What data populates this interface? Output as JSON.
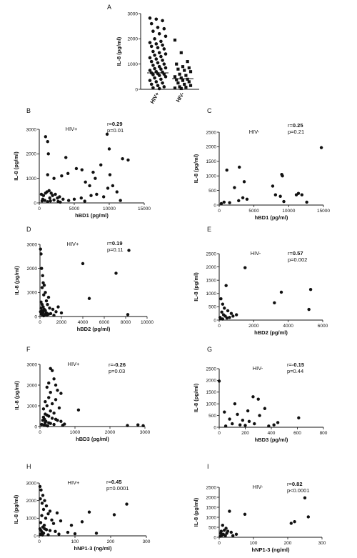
{
  "figure": {
    "panels": [
      {
        "label": "A"
      },
      {
        "label": "B"
      },
      {
        "label": "C"
      },
      {
        "label": "D"
      },
      {
        "label": "E"
      },
      {
        "label": "F"
      },
      {
        "label": "G"
      },
      {
        "label": "H"
      },
      {
        "label": "I"
      }
    ]
  },
  "chart_data": [
    {
      "panel": "A",
      "type": "scatter",
      "title": "",
      "xlabel": "",
      "ylabel": "IL-8 (pg/ml)",
      "categories": [
        "HIV+",
        "HIV-"
      ],
      "ylim": [
        0,
        3000
      ],
      "yticks": [
        0,
        1000,
        2000,
        3000
      ],
      "mean_bars": [
        650,
        420
      ],
      "series": [
        {
          "marker": "circle",
          "values": [
            2820,
            2780,
            2720,
            2600,
            2450,
            2400,
            2300,
            2200,
            2100,
            2000,
            1900,
            1850,
            1800,
            1750,
            1700,
            1650,
            1600,
            1500,
            1450,
            1400,
            1350,
            1300,
            1250,
            1200,
            1150,
            1100,
            1050,
            1000,
            950,
            900,
            850,
            820,
            800,
            750,
            700,
            680,
            650,
            620,
            600,
            580,
            550,
            500,
            450,
            400,
            350,
            300,
            250,
            200,
            150,
            100,
            60,
            30
          ]
        },
        {
          "marker": "square",
          "values": [
            1950,
            1450,
            1100,
            1000,
            900,
            850,
            800,
            750,
            700,
            600,
            550,
            500,
            450,
            400,
            380,
            350,
            300,
            250,
            200,
            150,
            100,
            80,
            50,
            30
          ]
        }
      ]
    },
    {
      "panel": "B",
      "type": "scatter",
      "title": "HIV+",
      "xlabel": "hBD1 (pg/ml)",
      "ylabel": "IL-8 (pg/ml)",
      "xlim": [
        0,
        15000
      ],
      "xticks": [
        0,
        5000,
        10000,
        15000
      ],
      "ylim": [
        0,
        3000
      ],
      "yticks": [
        0,
        1000,
        2000,
        3000
      ],
      "r_label": "r=",
      "r_value": "0.29",
      "p_text": "p=0.01",
      "points": [
        [
          900,
          2700
        ],
        [
          1200,
          2500
        ],
        [
          9700,
          2800
        ],
        [
          1300,
          2000
        ],
        [
          10000,
          2200
        ],
        [
          3800,
          1850
        ],
        [
          11900,
          1800
        ],
        [
          12700,
          1750
        ],
        [
          8800,
          1550
        ],
        [
          5300,
          1400
        ],
        [
          6100,
          1350
        ],
        [
          4100,
          1200
        ],
        [
          7700,
          1250
        ],
        [
          10100,
          1150
        ],
        [
          8000,
          1000
        ],
        [
          3200,
          1100
        ],
        [
          1200,
          1150
        ],
        [
          2100,
          1000
        ],
        [
          6600,
          850
        ],
        [
          7200,
          700
        ],
        [
          9800,
          600
        ],
        [
          10500,
          700
        ],
        [
          11100,
          450
        ],
        [
          11600,
          100
        ],
        [
          300,
          350
        ],
        [
          600,
          300
        ],
        [
          900,
          400
        ],
        [
          1100,
          450
        ],
        [
          1400,
          500
        ],
        [
          1700,
          400
        ],
        [
          1900,
          300
        ],
        [
          2300,
          350
        ],
        [
          2600,
          200
        ],
        [
          2900,
          250
        ],
        [
          3400,
          150
        ],
        [
          500,
          150
        ],
        [
          800,
          100
        ],
        [
          1200,
          50
        ],
        [
          1600,
          80
        ],
        [
          2100,
          120
        ],
        [
          2700,
          60
        ],
        [
          4200,
          100
        ],
        [
          5000,
          150
        ],
        [
          6000,
          200
        ],
        [
          7400,
          300
        ],
        [
          8200,
          350
        ],
        [
          9200,
          250
        ],
        [
          400,
          80
        ],
        [
          1500,
          200
        ],
        [
          3000,
          30
        ],
        [
          6500,
          70
        ]
      ]
    },
    {
      "panel": "C",
      "type": "scatter",
      "title": "HIV-",
      "xlabel": "hBD1 (pg/ml)",
      "ylabel": "IL-8 (pg/ml)",
      "xlim": [
        0,
        15000
      ],
      "xticks": [
        0,
        5000,
        10000,
        15000
      ],
      "ylim": [
        0,
        2500
      ],
      "yticks": [
        0,
        500,
        1000,
        1500,
        2000,
        2500
      ],
      "r_label": "r=",
      "r_value": "0.25",
      "p_text": "p=0.21",
      "points": [
        [
          14700,
          1970
        ],
        [
          1100,
          1200
        ],
        [
          2900,
          1300
        ],
        [
          9000,
          1050
        ],
        [
          9100,
          1000
        ],
        [
          3600,
          800
        ],
        [
          7700,
          650
        ],
        [
          2200,
          600
        ],
        [
          8100,
          350
        ],
        [
          8800,
          300
        ],
        [
          11100,
          350
        ],
        [
          11400,
          400
        ],
        [
          11900,
          350
        ],
        [
          12600,
          100
        ],
        [
          3400,
          250
        ],
        [
          4000,
          200
        ],
        [
          700,
          100
        ],
        [
          300,
          50
        ],
        [
          1500,
          80
        ],
        [
          9300,
          120
        ],
        [
          2800,
          150
        ]
      ]
    },
    {
      "panel": "D",
      "type": "scatter",
      "title": "HIV+",
      "xlabel": "hBD2 (pg/ml)",
      "ylabel": "IL-8 (pg/ml)",
      "xlim": [
        0,
        10000
      ],
      "xticks": [
        0,
        2000,
        4000,
        6000,
        8000,
        10000
      ],
      "ylim": [
        0,
        3000
      ],
      "yticks": [
        0,
        1000,
        2000,
        3000
      ],
      "r_label": "r=",
      "r_value": "0.19",
      "p_text": "p=0.11",
      "points": [
        [
          50,
          2800
        ],
        [
          100,
          2600
        ],
        [
          8300,
          2750
        ],
        [
          4000,
          2200
        ],
        [
          7100,
          1800
        ],
        [
          150,
          2000
        ],
        [
          250,
          1700
        ],
        [
          300,
          1400
        ],
        [
          400,
          1300
        ],
        [
          200,
          1200
        ],
        [
          500,
          1000
        ],
        [
          350,
          900
        ],
        [
          4600,
          750
        ],
        [
          800,
          800
        ],
        [
          600,
          650
        ],
        [
          700,
          500
        ],
        [
          900,
          350
        ],
        [
          1200,
          300
        ],
        [
          1500,
          200
        ],
        [
          1700,
          400
        ],
        [
          100,
          600
        ],
        [
          200,
          500
        ],
        [
          300,
          400
        ],
        [
          400,
          300
        ],
        [
          500,
          250
        ],
        [
          600,
          150
        ],
        [
          800,
          100
        ],
        [
          50,
          200
        ],
        [
          150,
          100
        ],
        [
          250,
          50
        ],
        [
          350,
          30
        ],
        [
          450,
          80
        ],
        [
          650,
          60
        ],
        [
          1000,
          120
        ],
        [
          8200,
          80
        ],
        [
          2000,
          150
        ],
        [
          1300,
          50
        ],
        [
          100,
          350
        ],
        [
          200,
          250
        ],
        [
          300,
          180
        ]
      ]
    },
    {
      "panel": "E",
      "type": "scatter",
      "title": "HIV-",
      "xlabel": "hBD2 (pg/ml)",
      "ylabel": "IL-8 (pg/ml)",
      "xlim": [
        0,
        6000
      ],
      "xticks": [
        0,
        2000,
        4000,
        6000
      ],
      "ylim": [
        0,
        2500
      ],
      "yticks": [
        0,
        500,
        1000,
        1500,
        2000,
        2500
      ],
      "r_label": "r=",
      "r_value": "0.57",
      "p_text": "p=0.002",
      "points": [
        [
          1500,
          1970
        ],
        [
          400,
          1300
        ],
        [
          5300,
          1150
        ],
        [
          3600,
          1050
        ],
        [
          3200,
          650
        ],
        [
          5200,
          400
        ],
        [
          100,
          800
        ],
        [
          200,
          600
        ],
        [
          300,
          450
        ],
        [
          500,
          350
        ],
        [
          700,
          250
        ],
        [
          150,
          300
        ],
        [
          250,
          200
        ],
        [
          350,
          150
        ],
        [
          50,
          100
        ],
        [
          450,
          80
        ],
        [
          800,
          150
        ],
        [
          1000,
          200
        ],
        [
          100,
          50
        ],
        [
          200,
          40
        ],
        [
          600,
          100
        ]
      ]
    },
    {
      "panel": "F",
      "type": "scatter",
      "title": "HIV+",
      "xlabel": "hBD3 (pg/ml)",
      "ylabel": "IL-8 (pg/ml)",
      "xlim": [
        0,
        3000
      ],
      "xticks": [
        0,
        1000,
        2000,
        3000
      ],
      "ylim": [
        0,
        3000
      ],
      "yticks": [
        0,
        1000,
        2000,
        3000
      ],
      "r_label": "r=",
      "r_value": "-0.26",
      "p_text": "p=0.03",
      "points": [
        [
          300,
          2800
        ],
        [
          350,
          2700
        ],
        [
          400,
          2300
        ],
        [
          250,
          2100
        ],
        [
          450,
          2000
        ],
        [
          200,
          1900
        ],
        [
          500,
          1750
        ],
        [
          300,
          1650
        ],
        [
          600,
          1600
        ],
        [
          250,
          1400
        ],
        [
          450,
          1300
        ],
        [
          150,
          1200
        ],
        [
          350,
          1100
        ],
        [
          200,
          1000
        ],
        [
          550,
          900
        ],
        [
          100,
          850
        ],
        [
          1100,
          800
        ],
        [
          300,
          750
        ],
        [
          400,
          650
        ],
        [
          150,
          600
        ],
        [
          200,
          550
        ],
        [
          250,
          500
        ],
        [
          100,
          450
        ],
        [
          350,
          400
        ],
        [
          450,
          350
        ],
        [
          500,
          300
        ],
        [
          600,
          250
        ],
        [
          150,
          200
        ],
        [
          250,
          180
        ],
        [
          300,
          150
        ],
        [
          50,
          100
        ],
        [
          120,
          80
        ],
        [
          180,
          50
        ],
        [
          220,
          30
        ],
        [
          400,
          100
        ],
        [
          650,
          60
        ],
        [
          2500,
          50
        ],
        [
          2800,
          80
        ],
        [
          2950,
          40
        ],
        [
          80,
          300
        ],
        [
          130,
          350
        ],
        [
          170,
          250
        ],
        [
          700,
          120
        ]
      ]
    },
    {
      "panel": "G",
      "type": "scatter",
      "title": "HIV-",
      "xlabel": "hBD3 (pg/ml)",
      "ylabel": "IL-8 (pg/ml)",
      "xlim": [
        0,
        800
      ],
      "xticks": [
        0,
        200,
        400,
        600,
        800
      ],
      "ylim": [
        0,
        2500
      ],
      "yticks": [
        0,
        500,
        1000,
        1500,
        2000,
        2500
      ],
      "r_label": "r=",
      "r_value": "-0.15",
      "p_text": "p=0.44",
      "points": [
        [
          0,
          1970
        ],
        [
          260,
          1300
        ],
        [
          300,
          1200
        ],
        [
          120,
          1000
        ],
        [
          350,
          800
        ],
        [
          220,
          700
        ],
        [
          40,
          650
        ],
        [
          140,
          550
        ],
        [
          310,
          500
        ],
        [
          610,
          400
        ],
        [
          80,
          350
        ],
        [
          180,
          300
        ],
        [
          230,
          250
        ],
        [
          450,
          200
        ],
        [
          100,
          150
        ],
        [
          160,
          100
        ],
        [
          200,
          80
        ],
        [
          380,
          50
        ],
        [
          50,
          50
        ],
        [
          420,
          100
        ],
        [
          270,
          150
        ]
      ]
    },
    {
      "panel": "H",
      "type": "scatter",
      "title": "HIV+",
      "xlabel": "hNP1-3 (ng/ml)",
      "ylabel": "IL-8 (pg/ml)",
      "xlim": [
        0,
        300
      ],
      "xticks": [
        0,
        100,
        200,
        300
      ],
      "ylim": [
        0,
        3000
      ],
      "yticks": [
        0,
        1000,
        2000,
        3000
      ],
      "r_label": "r=",
      "r_value": "0.45",
      "p_text": "p=0.0001",
      "points": [
        [
          2,
          2800
        ],
        [
          5,
          2600
        ],
        [
          10,
          2300
        ],
        [
          3,
          2100
        ],
        [
          15,
          2000
        ],
        [
          8,
          1850
        ],
        [
          245,
          1800
        ],
        [
          20,
          1700
        ],
        [
          12,
          1500
        ],
        [
          30,
          1400
        ],
        [
          140,
          1350
        ],
        [
          50,
          1300
        ],
        [
          25,
          1250
        ],
        [
          210,
          1200
        ],
        [
          7,
          1150
        ],
        [
          18,
          1000
        ],
        [
          35,
          900
        ],
        [
          60,
          850
        ],
        [
          120,
          800
        ],
        [
          4,
          750
        ],
        [
          40,
          700
        ],
        [
          90,
          600
        ],
        [
          10,
          500
        ],
        [
          15,
          400
        ],
        [
          20,
          350
        ],
        [
          30,
          300
        ],
        [
          45,
          250
        ],
        [
          80,
          200
        ],
        [
          160,
          150
        ],
        [
          5,
          300
        ],
        [
          8,
          200
        ],
        [
          12,
          150
        ],
        [
          3,
          100
        ],
        [
          6,
          80
        ],
        [
          9,
          50
        ],
        [
          25,
          60
        ],
        [
          55,
          100
        ],
        [
          100,
          120
        ],
        [
          2,
          400
        ],
        [
          14,
          600
        ]
      ]
    },
    {
      "panel": "I",
      "type": "scatter",
      "title": "HIV-",
      "xlabel": "hNP1-3 (ng/ml)",
      "ylabel": "IL-8 (pg/ml)",
      "xlim": [
        0,
        300
      ],
      "xticks": [
        0,
        100,
        200,
        300
      ],
      "ylim": [
        0,
        2500
      ],
      "yticks": [
        0,
        500,
        1000,
        1500,
        2000,
        2500
      ],
      "r_label": "r=",
      "r_value": "0.82",
      "p_text": "p<0.0001",
      "points": [
        [
          250,
          1970
        ],
        [
          30,
          1300
        ],
        [
          75,
          1150
        ],
        [
          260,
          1020
        ],
        [
          220,
          780
        ],
        [
          210,
          700
        ],
        [
          10,
          600
        ],
        [
          20,
          450
        ],
        [
          15,
          350
        ],
        [
          25,
          300
        ],
        [
          5,
          200
        ],
        [
          12,
          150
        ],
        [
          8,
          100
        ],
        [
          35,
          250
        ],
        [
          50,
          150
        ],
        [
          3,
          50
        ],
        [
          18,
          80
        ],
        [
          40,
          80
        ],
        [
          6,
          300
        ],
        [
          22,
          200
        ]
      ]
    }
  ]
}
